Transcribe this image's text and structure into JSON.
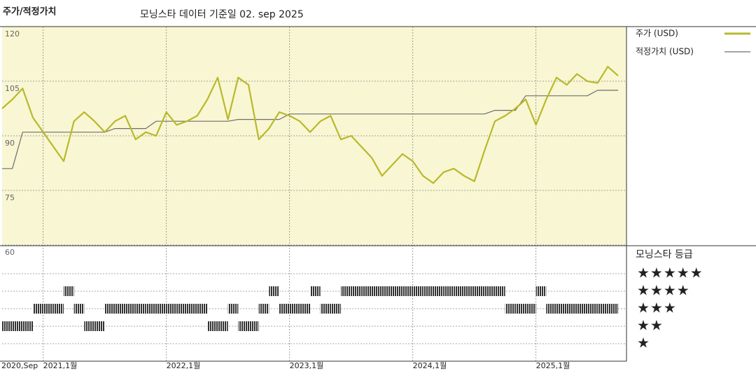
{
  "chart_data": {
    "type": "line",
    "label": "주가/적정가치",
    "title": "모닝스타 데이터 기준일 02. sep 2025",
    "x": [
      "2020-09",
      "2020-10",
      "2020-11",
      "2020-12",
      "2021-01",
      "2021-02",
      "2021-03",
      "2021-04",
      "2021-05",
      "2021-06",
      "2021-07",
      "2021-08",
      "2021-09",
      "2021-10",
      "2021-11",
      "2021-12",
      "2022-01",
      "2022-02",
      "2022-03",
      "2022-04",
      "2022-05",
      "2022-06",
      "2022-07",
      "2022-08",
      "2022-09",
      "2022-10",
      "2022-11",
      "2022-12",
      "2023-01",
      "2023-02",
      "2023-03",
      "2023-04",
      "2023-05",
      "2023-06",
      "2023-07",
      "2023-08",
      "2023-09",
      "2023-10",
      "2023-11",
      "2023-12",
      "2024-01",
      "2024-02",
      "2024-03",
      "2024-04",
      "2024-05",
      "2024-06",
      "2024-07",
      "2024-08",
      "2024-09",
      "2024-10",
      "2024-11",
      "2024-12",
      "2025-01",
      "2025-02",
      "2025-03",
      "2025-04",
      "2025-05",
      "2025-06",
      "2025-07",
      "2025-08",
      "2025-09"
    ],
    "xlim": [
      "2020-09",
      "2025-09"
    ],
    "xticks": [
      {
        "value": "2020-09",
        "label": "2020,Sep"
      },
      {
        "value": "2021-01",
        "label": "2021,1월"
      },
      {
        "value": "2022-01",
        "label": "2022,1월"
      },
      {
        "value": "2023-01",
        "label": "2023,1월"
      },
      {
        "value": "2024-01",
        "label": "2024,1월"
      },
      {
        "value": "2025-01",
        "label": "2025,1월"
      }
    ],
    "ylim": [
      60,
      120
    ],
    "yticks": [
      120,
      105,
      90,
      75,
      60
    ],
    "series": [
      {
        "name": "주가 (USD)",
        "color": "#b8b92c",
        "values": [
          97.5,
          100,
          103,
          95,
          91,
          87,
          83,
          94,
          96.5,
          94,
          91,
          94,
          95.5,
          89,
          91,
          90,
          96.5,
          93,
          94,
          95.5,
          100,
          106,
          94.5,
          106,
          104,
          89,
          92,
          96.5,
          95.5,
          94,
          91,
          94,
          95.5,
          89,
          90,
          87,
          84,
          79,
          82,
          85,
          83,
          79,
          77,
          80,
          81,
          79,
          77.5,
          86,
          94,
          95.5,
          97.5,
          100,
          93,
          100,
          106,
          104,
          107,
          105,
          104.5,
          109,
          106.5
        ]
      },
      {
        "name": "적정가치 (USD)",
        "color": "#6e6e6e",
        "values": [
          81,
          81,
          91,
          91,
          91,
          91,
          91,
          91,
          91,
          91,
          91,
          92,
          92,
          92,
          92,
          94,
          94,
          94,
          94,
          94,
          94,
          94,
          94,
          94.5,
          94.5,
          94.5,
          94.5,
          94.5,
          96,
          96,
          96,
          96,
          96,
          96,
          96,
          96,
          96,
          96,
          96,
          96,
          96,
          96,
          96,
          96,
          96,
          96,
          96,
          96,
          97,
          97,
          97,
          101,
          101,
          101,
          101,
          101,
          101,
          101,
          102.5,
          102.5,
          102.5
        ]
      }
    ],
    "rating": {
      "name": "모닝스타 등급",
      "color": "#333333",
      "levels": [
        {
          "value": 5,
          "label": "★★★★★"
        },
        {
          "value": 4,
          "label": "★★★★"
        },
        {
          "value": 3,
          "label": "★★★"
        },
        {
          "value": 2,
          "label": "★★"
        },
        {
          "value": 1,
          "label": "★"
        }
      ],
      "values": [
        2,
        2,
        2,
        3,
        3,
        3,
        4,
        3,
        2,
        2,
        3,
        3,
        3,
        3,
        3,
        3,
        3,
        3,
        3,
        3,
        2,
        2,
        3,
        2,
        2,
        3,
        4,
        3,
        3,
        3,
        4,
        3,
        3,
        4,
        4,
        4,
        4,
        4,
        4,
        4,
        4,
        4,
        4,
        4,
        4,
        4,
        4,
        4,
        4,
        3,
        3,
        3,
        4,
        3,
        3,
        3,
        3,
        3,
        3,
        3,
        2
      ]
    },
    "background": "#f9f6d3",
    "grid": true
  }
}
